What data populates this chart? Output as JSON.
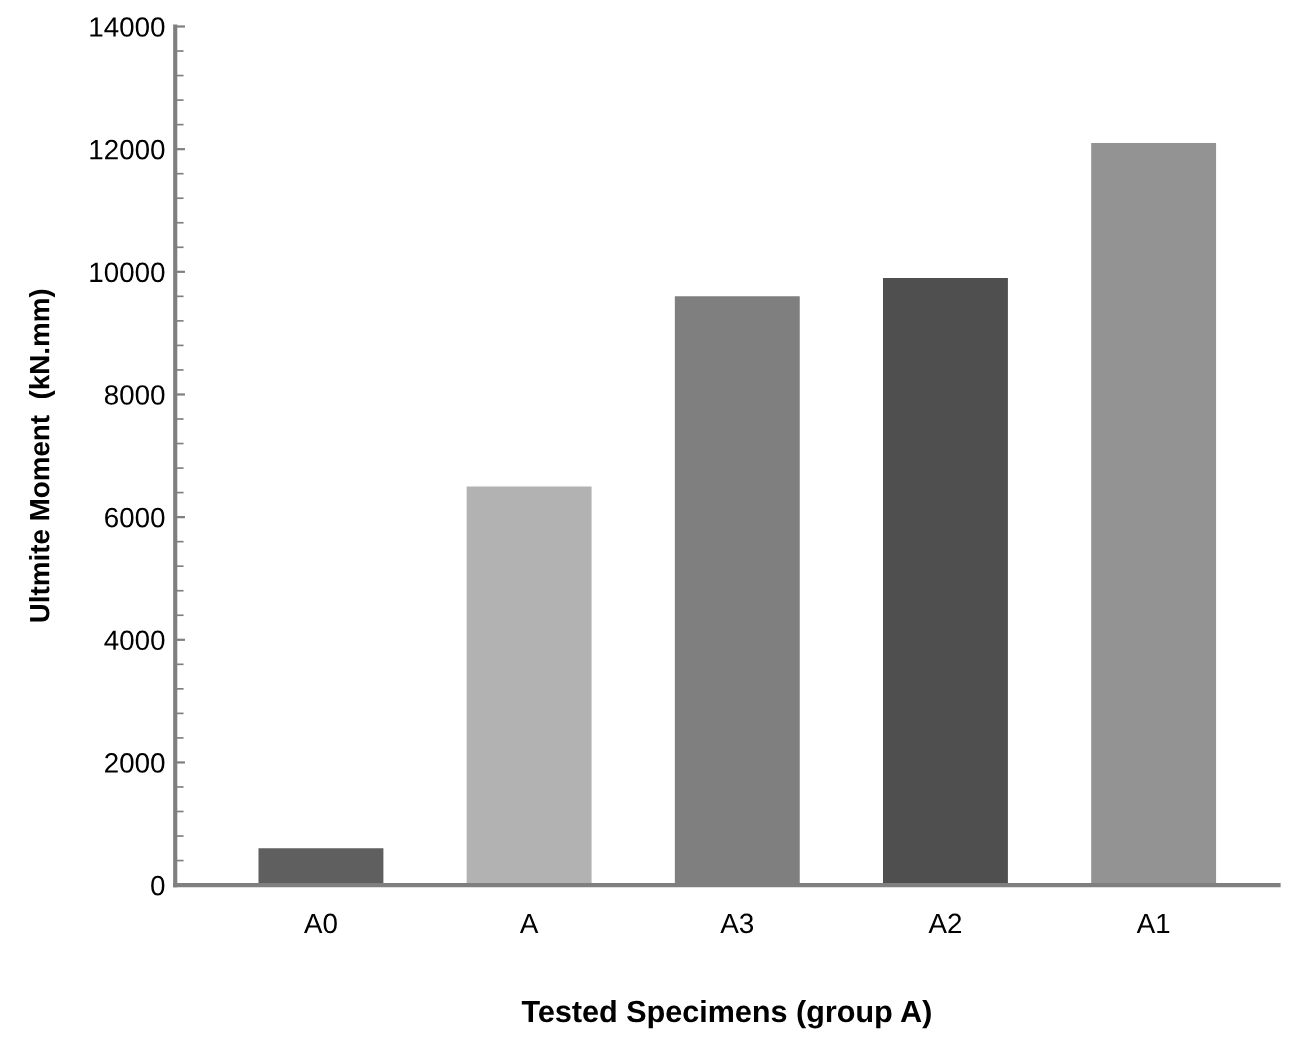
{
  "chart_data": {
    "type": "bar",
    "xlabel": "Tested Specimens (group A)",
    "ylabel": "Ultmite Moment  (kN.mm)",
    "categories": [
      "A0",
      "A",
      "A3",
      "A2",
      "A1"
    ],
    "values": [
      600,
      6500,
      9600,
      9900,
      12100
    ],
    "colors": [
      "#5f5f5f",
      "#b2b2b2",
      "#7f7f7f",
      "#4f4f4f",
      "#939393"
    ],
    "ylim": [
      0,
      14000
    ],
    "yticks": [
      0,
      2000,
      4000,
      6000,
      8000,
      10000,
      12000,
      14000
    ],
    "grid": false
  }
}
